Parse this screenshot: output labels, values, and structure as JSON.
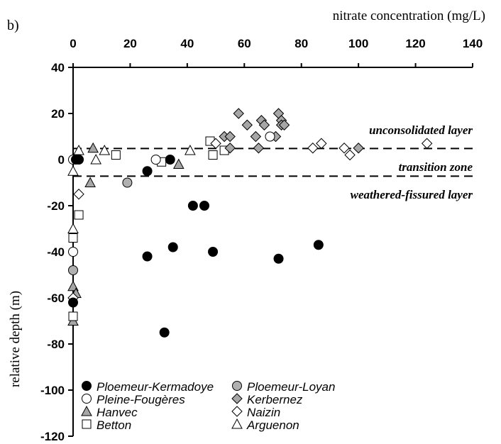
{
  "chart_data": {
    "type": "scatter",
    "panel_label": "b)",
    "xlabel": "nitrate concentration (mg/L)",
    "ylabel": "relative depth (m)",
    "xlim": [
      0,
      140
    ],
    "ylim": [
      -120,
      40
    ],
    "x_ticks": [
      "0",
      "20",
      "40",
      "60",
      "80",
      "100",
      "120",
      "140"
    ],
    "y_ticks": [
      "40",
      "20",
      "0",
      "-20",
      "-40",
      "-60",
      "-80",
      "-100",
      "-120"
    ],
    "x_axis_position": "top",
    "grid": false,
    "legend_position": "bottom-inside",
    "reference_lines": [
      {
        "y": 4.8,
        "style": "dashed"
      },
      {
        "y": -7.2,
        "style": "dashed"
      }
    ],
    "zone_labels": [
      {
        "text": "unconsolidated layer",
        "y": 13
      },
      {
        "text": "transition zone",
        "y": -3
      },
      {
        "text": "weathered-fissured layer",
        "y": -15
      }
    ],
    "series": [
      {
        "name": "Ploemeur-Kermadoye",
        "marker": "circle",
        "fill": "#000000",
        "points": [
          [
            0,
            -62
          ],
          [
            1,
            0
          ],
          [
            2,
            0
          ],
          [
            26,
            -5
          ],
          [
            26,
            -42
          ],
          [
            32,
            -75
          ],
          [
            34,
            0
          ],
          [
            35,
            -38
          ],
          [
            42,
            -20
          ],
          [
            46,
            -20
          ],
          [
            49,
            -40
          ],
          [
            72,
            -43
          ],
          [
            86,
            -37
          ]
        ]
      },
      {
        "name": "Ploemeur-Loyan",
        "marker": "circle",
        "fill": "#b0b0b0",
        "points": [
          [
            0,
            -48
          ],
          [
            19,
            -10
          ]
        ]
      },
      {
        "name": "Pleine-Fougères",
        "marker": "circle",
        "fill": "#ffffff",
        "points": [
          [
            0,
            0
          ],
          [
            0,
            -40
          ],
          [
            29,
            0
          ],
          [
            69,
            10
          ]
        ]
      },
      {
        "name": "Kerbernez",
        "marker": "diamond",
        "fill": "#a6a6a6",
        "points": [
          [
            53,
            10
          ],
          [
            55,
            10
          ],
          [
            55,
            5
          ],
          [
            58,
            20
          ],
          [
            61,
            15
          ],
          [
            64,
            10
          ],
          [
            65,
            5
          ],
          [
            66,
            17
          ],
          [
            67,
            15
          ],
          [
            71,
            10
          ],
          [
            72,
            20
          ],
          [
            73,
            17
          ],
          [
            73,
            15
          ],
          [
            74,
            15
          ],
          [
            100,
            5
          ]
        ]
      },
      {
        "name": "Hanvec",
        "marker": "triangle",
        "fill": "#a6a6a6",
        "points": [
          [
            0,
            -55
          ],
          [
            0,
            -70
          ],
          [
            1,
            -58
          ],
          [
            6,
            -10
          ],
          [
            7,
            5
          ],
          [
            37,
            -2
          ]
        ]
      },
      {
        "name": "Naizin",
        "marker": "diamond",
        "fill": "#ffffff",
        "points": [
          [
            0,
            -60
          ],
          [
            2,
            -15
          ],
          [
            50,
            7
          ],
          [
            84,
            5
          ],
          [
            87,
            7
          ],
          [
            95,
            5
          ],
          [
            97,
            2
          ],
          [
            124,
            7
          ]
        ]
      },
      {
        "name": "Betton",
        "marker": "square",
        "fill": "#ffffff",
        "points": [
          [
            0,
            -34
          ],
          [
            0,
            -68
          ],
          [
            2,
            -24
          ],
          [
            15,
            2
          ],
          [
            31,
            -1
          ],
          [
            48,
            8
          ],
          [
            49,
            2
          ],
          [
            53,
            4
          ]
        ]
      },
      {
        "name": "Arguenon",
        "marker": "triangle",
        "fill": "#ffffff",
        "points": [
          [
            0,
            -30
          ],
          [
            0,
            -5
          ],
          [
            2,
            4
          ],
          [
            8,
            0
          ],
          [
            11,
            4
          ],
          [
            41,
            4
          ]
        ]
      }
    ]
  }
}
